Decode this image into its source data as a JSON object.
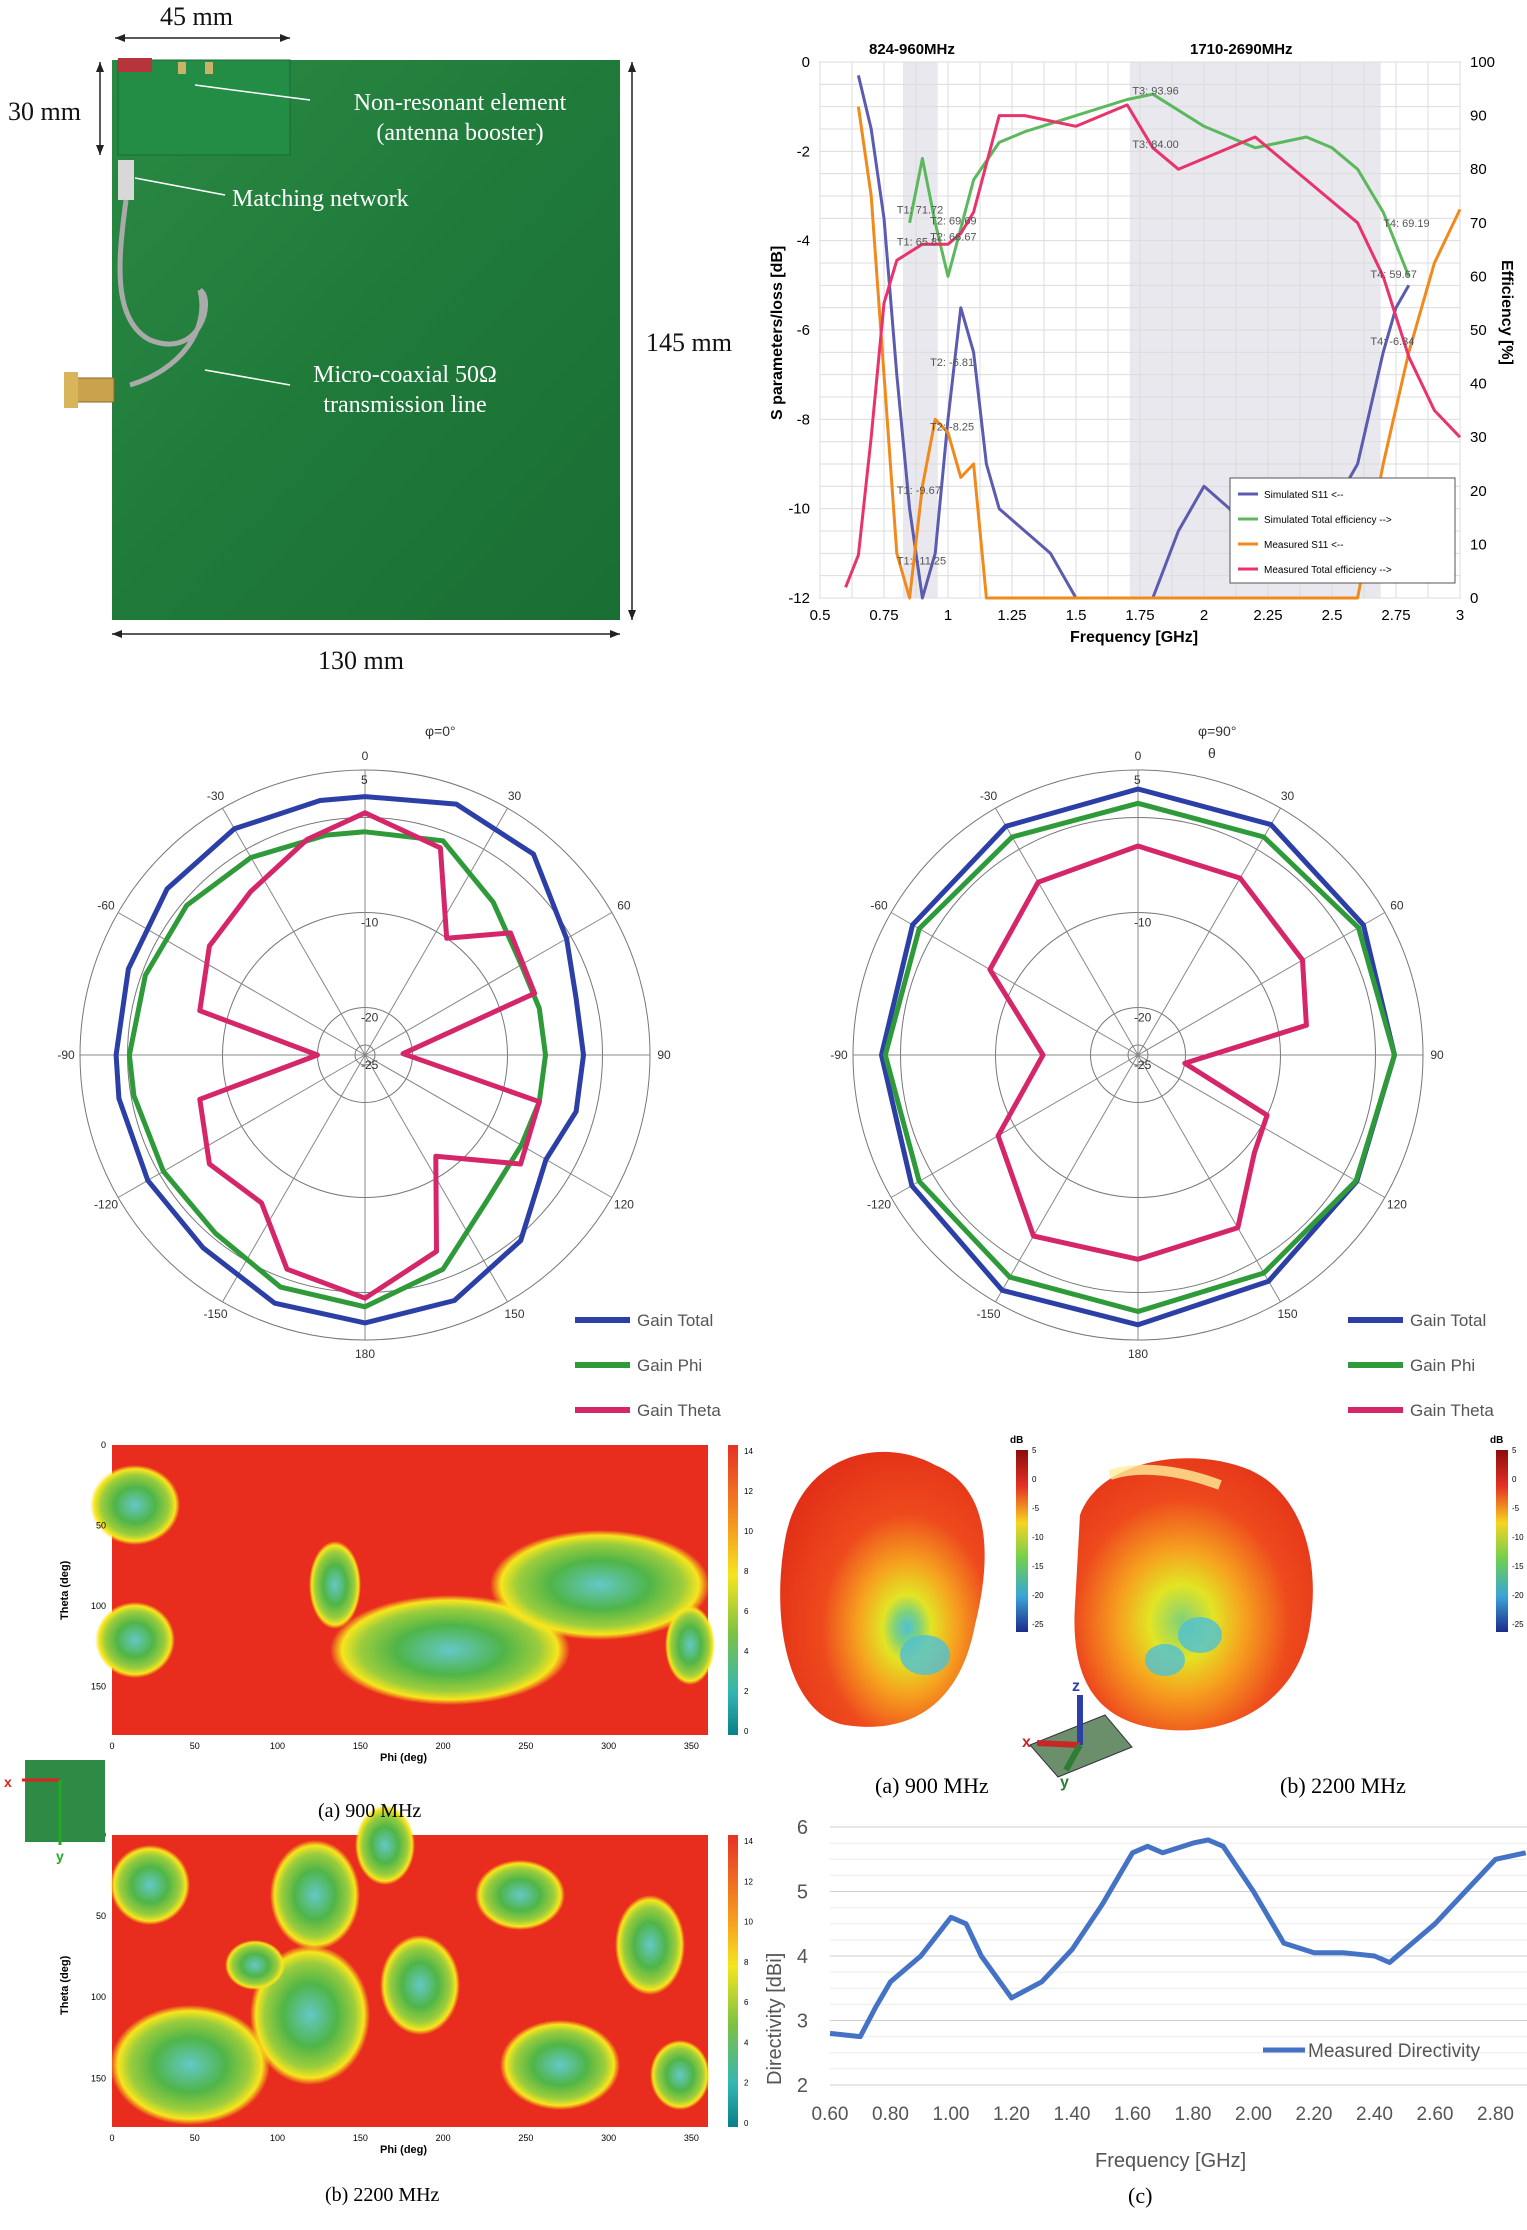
{
  "photo": {
    "dim_width_top": "45 mm",
    "dim_height_left": "30 mm",
    "dim_height_right": "145 mm",
    "dim_width_bottom": "130 mm",
    "label_booster_1": "Non-resonant element",
    "label_booster_2": "(antenna booster)",
    "label_matching": "Matching network",
    "label_coax_1": "Micro-coaxial 50Ω",
    "label_coax_2": "transmission line"
  },
  "sparam_chart": {
    "band_low": "824-960MHz",
    "band_high": "1710-2690MHz",
    "ylabel_left": "S parameters/loss [dB]",
    "ylabel_right": "Efficiency [%]",
    "xlabel": "Frequency [GHz]",
    "x_ticks": [
      "0.5",
      "0.75",
      "1",
      "1.25",
      "1.5",
      "1.75",
      "2",
      "2.25",
      "2.5",
      "2.75",
      "3"
    ],
    "y_left_ticks": [
      "0",
      "-2",
      "-4",
      "-6",
      "-8",
      "-10",
      "-12"
    ],
    "y_right_ticks": [
      "100",
      "90",
      "80",
      "70",
      "60",
      "50",
      "40",
      "30",
      "20",
      "10",
      "0"
    ],
    "markers": [
      "T1: 71.72",
      "T2: 69.69",
      "T1: 65.8",
      "T2: 66.67",
      "T2: -6.81",
      "T2: -8.25",
      "T1: -9.67",
      "T1: -11.25",
      "T3: 93.96",
      "T3: 84.00",
      "T4: 69.19",
      "T4: 59.67",
      "T4: -6.34"
    ],
    "legend": [
      "Simulated S11 <--",
      "Simulated Total efficiency -->",
      "Measured S11 <--",
      "Measured Total efficiency -->"
    ],
    "colors": {
      "sim_s11": "#5b5bb0",
      "sim_eff": "#5cb85c",
      "meas_s11": "#f08a1c",
      "meas_eff": "#e8336b"
    }
  },
  "chart_data": [
    {
      "type": "line",
      "title": "",
      "xlabel": "Frequency [GHz]",
      "ylabel": "S parameters/loss [dB]",
      "y2label": "Efficiency [%]",
      "xlim": [
        0.5,
        3
      ],
      "ylim": [
        -12,
        0
      ],
      "y2lim": [
        0,
        100
      ],
      "series": [
        {
          "name": "Simulated S11 <--",
          "axis": "left",
          "x": [
            0.65,
            0.7,
            0.75,
            0.8,
            0.85,
            0.9,
            0.95,
            1.0,
            1.05,
            1.1,
            1.15,
            1.2,
            1.3,
            1.4,
            1.5,
            1.55,
            1.8,
            1.9,
            2.0,
            2.1,
            2.2,
            2.4,
            2.5,
            2.6,
            2.7,
            2.75,
            2.8
          ],
          "y": [
            -0.3,
            -1.5,
            -3.5,
            -7,
            -10,
            -12,
            -11,
            -8,
            -5.5,
            -6.5,
            -9,
            -10,
            -10.5,
            -11,
            -12,
            -12,
            -12,
            -10.5,
            -9.5,
            -10,
            -11,
            -11,
            -10,
            -9,
            -6.5,
            -5.5,
            -5
          ]
        },
        {
          "name": "Simulated Total efficiency -->",
          "axis": "right",
          "x": [
            0.85,
            0.9,
            0.95,
            1.0,
            1.05,
            1.1,
            1.2,
            1.3,
            1.5,
            1.7,
            1.8,
            2.0,
            2.2,
            2.4,
            2.5,
            2.6,
            2.7,
            2.8
          ],
          "y": [
            70,
            82,
            70,
            60,
            69,
            78,
            85,
            87,
            90,
            93,
            94,
            88,
            84,
            86,
            84,
            80,
            72,
            60
          ]
        },
        {
          "name": "Measured S11 <--",
          "axis": "left",
          "x": [
            0.65,
            0.7,
            0.75,
            0.8,
            0.85,
            0.9,
            0.95,
            1.0,
            1.05,
            1.1,
            1.15,
            2.6,
            2.7,
            2.8,
            2.9,
            3.0
          ],
          "y": [
            -1,
            -3,
            -7,
            -11,
            -12,
            -9.5,
            -8,
            -8.3,
            -9.3,
            -9,
            -12,
            -12,
            -9,
            -6.5,
            -4.5,
            -3.3
          ]
        },
        {
          "name": "Measured Total efficiency -->",
          "axis": "right",
          "x": [
            0.6,
            0.65,
            0.7,
            0.75,
            0.8,
            0.9,
            1.0,
            1.05,
            1.1,
            1.2,
            1.3,
            1.5,
            1.7,
            1.8,
            1.9,
            2.0,
            2.2,
            2.4,
            2.6,
            2.7,
            2.8,
            2.9,
            3.0
          ],
          "y": [
            2,
            8,
            30,
            55,
            63,
            66,
            66,
            68,
            72,
            90,
            90,
            88,
            92,
            84,
            80,
            82,
            86,
            78,
            70,
            60,
            45,
            35,
            30
          ]
        }
      ]
    },
    {
      "type": "line",
      "title": "",
      "xlabel": "Frequency [GHz]",
      "ylabel": "Directivity [dBi]",
      "xlim": [
        0.6,
        2.9
      ],
      "ylim": [
        2,
        6
      ],
      "series": [
        {
          "name": "Measured Directivity",
          "x": [
            0.6,
            0.7,
            0.75,
            0.8,
            0.9,
            1.0,
            1.05,
            1.1,
            1.2,
            1.3,
            1.4,
            1.5,
            1.6,
            1.65,
            1.7,
            1.8,
            1.85,
            1.9,
            2.0,
            2.1,
            2.2,
            2.3,
            2.4,
            2.45,
            2.5,
            2.6,
            2.7,
            2.8,
            2.9
          ],
          "y": [
            2.8,
            2.75,
            3.2,
            3.6,
            4.0,
            4.6,
            4.5,
            4.0,
            3.35,
            3.6,
            4.1,
            4.8,
            5.6,
            5.7,
            5.6,
            5.75,
            5.8,
            5.7,
            5.0,
            4.2,
            4.05,
            4.05,
            4.0,
            3.9,
            4.1,
            4.5,
            5.0,
            5.5,
            5.6
          ]
        }
      ]
    }
  ],
  "polar1": {
    "title": "φ=0°",
    "angle_labels": [
      "0",
      "30",
      "60",
      "90",
      "120",
      "150",
      "180",
      "-150",
      "-120",
      "-90",
      "-60",
      "-30"
    ],
    "radial_labels": [
      "5",
      "-10",
      "-20",
      "-25"
    ],
    "legend": [
      "Gain Total",
      "Gain Phi",
      "Gain Theta"
    ]
  },
  "polar2": {
    "title": "φ=90°",
    "extra_label": "θ",
    "angle_labels": [
      "0",
      "30",
      "60",
      "90",
      "120",
      "150",
      "180",
      "-150",
      "-120",
      "-90",
      "-60",
      "-30"
    ],
    "radial_labels": [
      "5",
      "-10",
      "-20",
      "-25"
    ],
    "legend": [
      "Gain Total",
      "Gain Phi",
      "Gain Theta"
    ]
  },
  "contour_900": {
    "ylabel": "Theta (deg)",
    "xlabel": "Phi (deg)",
    "x_ticks": [
      "0",
      "50",
      "100",
      "150",
      "200",
      "250",
      "300",
      "350"
    ],
    "y_ticks": [
      "0",
      "50",
      "100",
      "150"
    ],
    "cbar_ticks": [
      "14",
      "12",
      "10",
      "8",
      "6",
      "4",
      "2",
      "0"
    ],
    "caption": "(a) 900 MHz"
  },
  "contour_2200": {
    "ylabel": "Theta (deg)",
    "xlabel": "Phi (deg)",
    "x_ticks": [
      "0",
      "50",
      "100",
      "150",
      "200",
      "250",
      "300",
      "350"
    ],
    "y_ticks": [
      "0",
      "50",
      "100",
      "150"
    ],
    "cbar_ticks": [
      "14",
      "12",
      "10",
      "8",
      "6",
      "4",
      "2",
      "0"
    ],
    "caption": "(b) 2200 MHz"
  },
  "axes_inset": {
    "x": "x",
    "y": "y",
    "z": "z"
  },
  "pattern3d": {
    "unit": "dB",
    "cbar_ticks": [
      "5",
      "0",
      "-5",
      "-10",
      "-15",
      "-20",
      "-25"
    ],
    "caption_a": "(a) 900 MHz",
    "caption_b": "(b) 2200 MHz"
  },
  "directivity": {
    "ylabel": "Directivity [dBi]",
    "xlabel": "Frequency [GHz]",
    "x_ticks": [
      "0.60",
      "0.80",
      "1.00",
      "1.20",
      "1.40",
      "1.60",
      "1.80",
      "2.00",
      "2.20",
      "2.40",
      "2.60",
      "2.80"
    ],
    "y_ticks": [
      "6",
      "5",
      "4",
      "3",
      "2"
    ],
    "legend": "Measured Directivity",
    "caption": "(c)",
    "color": "#4472c4"
  }
}
